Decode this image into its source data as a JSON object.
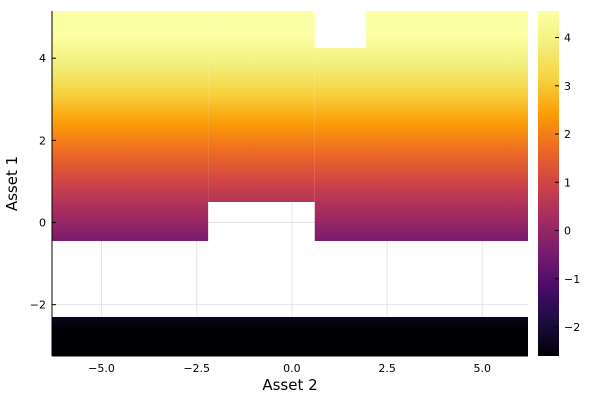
{
  "chart_data": {
    "type": "heatmap",
    "title": "",
    "xlabel": "Asset 2",
    "ylabel": "Asset 1",
    "xlim": [
      -6.3,
      6.2
    ],
    "ylim": [
      -3.25,
      5.15
    ],
    "x_ticks": [
      -5.0,
      -2.5,
      0.0,
      2.5,
      5.0
    ],
    "x_tick_labels": [
      "−5.0",
      "−2.5",
      "0.0",
      "2.5",
      "5.0"
    ],
    "y_ticks": [
      -2,
      0,
      2,
      4
    ],
    "y_tick_labels": [
      "−2",
      "0",
      "2",
      "4"
    ],
    "grid": true,
    "colormap": "inferno",
    "colorbar": {
      "range": [
        -2.6,
        4.55
      ],
      "ticks": [
        -2,
        -1,
        0,
        1,
        2,
        3,
        4
      ],
      "tick_labels": [
        "−2",
        "−1",
        "0",
        "1",
        "2",
        "3",
        "4"
      ]
    },
    "value_rule": "value equals Asset 1 (color varies with y only)",
    "filled_regions": [
      {
        "x_range": [
          -6.3,
          6.2
        ],
        "y_range": [
          -3.25,
          -2.3
        ]
      },
      {
        "x_range": [
          -6.3,
          -2.2
        ],
        "y_range": [
          -0.45,
          5.15
        ]
      },
      {
        "x_range": [
          -2.2,
          0.6
        ],
        "y_range": [
          0.5,
          5.15
        ]
      },
      {
        "x_range": [
          0.6,
          6.2
        ],
        "y_range": [
          -0.45,
          5.15
        ]
      }
    ],
    "missing_regions": [
      {
        "x_range": [
          0.6,
          1.95
        ],
        "y_range": [
          4.25,
          5.15
        ]
      }
    ]
  }
}
